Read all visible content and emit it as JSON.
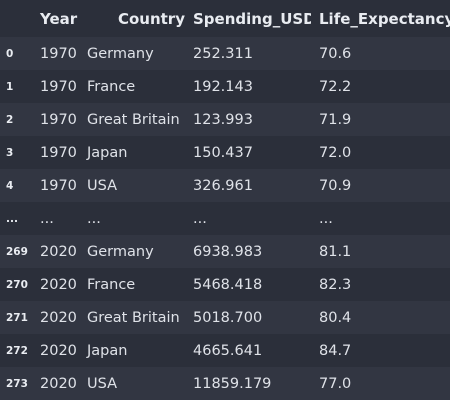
{
  "table": {
    "columns": [
      "Year",
      "Country",
      "Spending_USD",
      "Life_Expectancy"
    ],
    "rows": [
      {
        "index": "0",
        "year": "1970",
        "country": "Germany",
        "spending": "252.311",
        "life": "70.6"
      },
      {
        "index": "1",
        "year": "1970",
        "country": "France",
        "spending": "192.143",
        "life": "72.2"
      },
      {
        "index": "2",
        "year": "1970",
        "country": "Great Britain",
        "spending": "123.993",
        "life": "71.9"
      },
      {
        "index": "3",
        "year": "1970",
        "country": "Japan",
        "spending": "150.437",
        "life": "72.0"
      },
      {
        "index": "4",
        "year": "1970",
        "country": "USA",
        "spending": "326.961",
        "life": "70.9"
      },
      {
        "index": "...",
        "year": "...",
        "country": "...",
        "spending": "...",
        "life": "..."
      },
      {
        "index": "269",
        "year": "2020",
        "country": "Germany",
        "spending": "6938.983",
        "life": "81.1"
      },
      {
        "index": "270",
        "year": "2020",
        "country": "France",
        "spending": "5468.418",
        "life": "82.3"
      },
      {
        "index": "271",
        "year": "2020",
        "country": "Great Britain",
        "spending": "5018.700",
        "life": "80.4"
      },
      {
        "index": "272",
        "year": "2020",
        "country": "Japan",
        "spending": "4665.641",
        "life": "84.7"
      },
      {
        "index": "273",
        "year": "2020",
        "country": "USA",
        "spending": "11859.179",
        "life": "77.0"
      }
    ]
  },
  "colors": {
    "background": "#2b2f3a",
    "stripe": "#323642",
    "text": "#dfe2e8"
  }
}
